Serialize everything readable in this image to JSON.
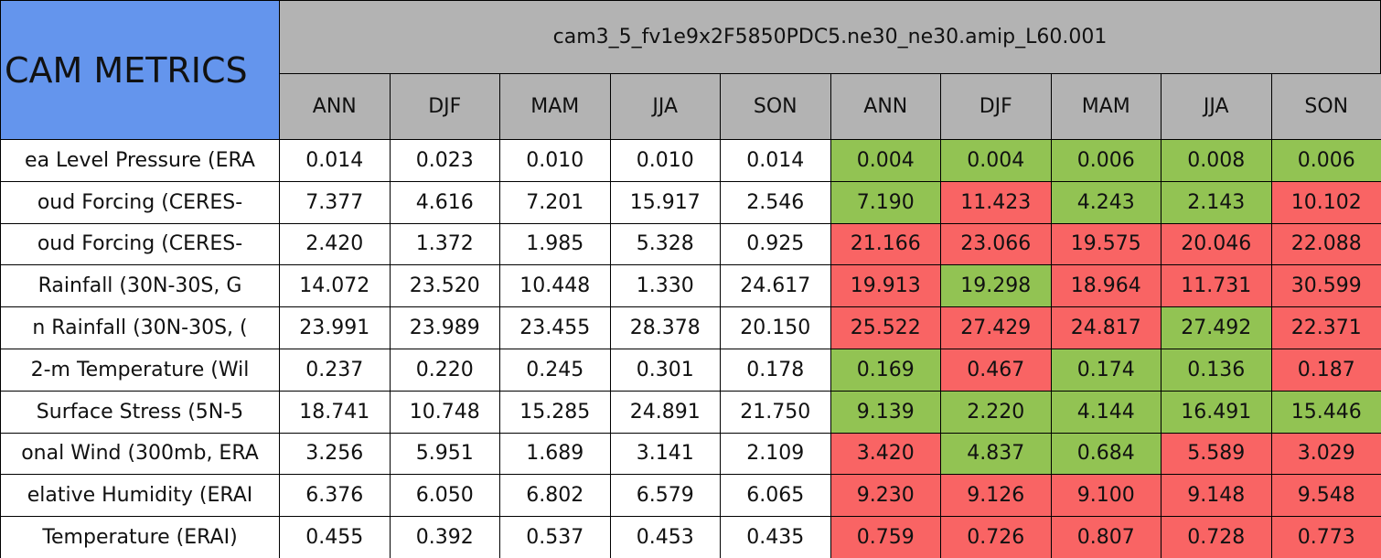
{
  "table": {
    "title": "CAM METRICS",
    "group_header": "cam3_5_fv1e9x2F5850PDC5.ne30_ne30.amip_L60.001",
    "columns": [
      "ANN",
      "DJF",
      "MAM",
      "JJA",
      "SON",
      "ANN",
      "DJF",
      "MAM",
      "JJA",
      "SON"
    ],
    "rows": [
      {
        "label": "ea Level Pressure (ERA",
        "values": [
          "0.014",
          "0.023",
          "0.010",
          "0.010",
          "0.014",
          "0.004",
          "0.004",
          "0.006",
          "0.008",
          "0.006"
        ],
        "colors": [
          "#ffffff",
          "#ffffff",
          "#ffffff",
          "#ffffff",
          "#ffffff",
          "#92c353",
          "#92c353",
          "#92c353",
          "#92c353",
          "#92c353"
        ]
      },
      {
        "label": "oud Forcing (CERES-",
        "values": [
          "7.377",
          "4.616",
          "7.201",
          "15.917",
          "2.546",
          "7.190",
          "11.423",
          "4.243",
          "2.143",
          "10.102"
        ],
        "colors": [
          "#ffffff",
          "#ffffff",
          "#ffffff",
          "#ffffff",
          "#ffffff",
          "#92c353",
          "#f96464",
          "#92c353",
          "#92c353",
          "#f96464"
        ]
      },
      {
        "label": "oud Forcing (CERES-",
        "values": [
          "2.420",
          "1.372",
          "1.985",
          "5.328",
          "0.925",
          "21.166",
          "23.066",
          "19.575",
          "20.046",
          "22.088"
        ],
        "colors": [
          "#ffffff",
          "#ffffff",
          "#ffffff",
          "#ffffff",
          "#ffffff",
          "#f96464",
          "#f96464",
          "#f96464",
          "#f96464",
          "#f96464"
        ]
      },
      {
        "label": "Rainfall (30N-30S, G",
        "values": [
          "14.072",
          "23.520",
          "10.448",
          "1.330",
          "24.617",
          "19.913",
          "19.298",
          "18.964",
          "11.731",
          "30.599"
        ],
        "colors": [
          "#ffffff",
          "#ffffff",
          "#ffffff",
          "#ffffff",
          "#ffffff",
          "#f96464",
          "#92c353",
          "#f96464",
          "#f96464",
          "#f96464"
        ]
      },
      {
        "label": "n Rainfall (30N-30S, (",
        "values": [
          "23.991",
          "23.989",
          "23.455",
          "28.378",
          "20.150",
          "25.522",
          "27.429",
          "24.817",
          "27.492",
          "22.371"
        ],
        "colors": [
          "#ffffff",
          "#ffffff",
          "#ffffff",
          "#ffffff",
          "#ffffff",
          "#f96464",
          "#f96464",
          "#f96464",
          "#92c353",
          "#f96464"
        ]
      },
      {
        "label": "2-m Temperature (Wil",
        "values": [
          "0.237",
          "0.220",
          "0.245",
          "0.301",
          "0.178",
          "0.169",
          "0.467",
          "0.174",
          "0.136",
          "0.187"
        ],
        "colors": [
          "#ffffff",
          "#ffffff",
          "#ffffff",
          "#ffffff",
          "#ffffff",
          "#92c353",
          "#f96464",
          "#92c353",
          "#92c353",
          "#f96464"
        ]
      },
      {
        "label": "Surface Stress (5N-5",
        "values": [
          "18.741",
          "10.748",
          "15.285",
          "24.891",
          "21.750",
          "9.139",
          "2.220",
          "4.144",
          "16.491",
          "15.446"
        ],
        "colors": [
          "#ffffff",
          "#ffffff",
          "#ffffff",
          "#ffffff",
          "#ffffff",
          "#92c353",
          "#92c353",
          "#92c353",
          "#92c353",
          "#92c353"
        ]
      },
      {
        "label": "onal Wind (300mb, ERA",
        "values": [
          "3.256",
          "5.951",
          "1.689",
          "3.141",
          "2.109",
          "3.420",
          "4.837",
          "0.684",
          "5.589",
          "3.029"
        ],
        "colors": [
          "#ffffff",
          "#ffffff",
          "#ffffff",
          "#ffffff",
          "#ffffff",
          "#f96464",
          "#92c353",
          "#92c353",
          "#f96464",
          "#f96464"
        ]
      },
      {
        "label": "elative Humidity (ERAI",
        "values": [
          "6.376",
          "6.050",
          "6.802",
          "6.579",
          "6.065",
          "9.230",
          "9.126",
          "9.100",
          "9.148",
          "9.548"
        ],
        "colors": [
          "#ffffff",
          "#ffffff",
          "#ffffff",
          "#ffffff",
          "#ffffff",
          "#f96464",
          "#f96464",
          "#f96464",
          "#f96464",
          "#f96464"
        ]
      },
      {
        "label": "Temperature (ERAI)",
        "values": [
          "0.455",
          "0.392",
          "0.537",
          "0.453",
          "0.435",
          "0.759",
          "0.726",
          "0.807",
          "0.728",
          "0.773"
        ],
        "colors": [
          "#ffffff",
          "#ffffff",
          "#ffffff",
          "#ffffff",
          "#ffffff",
          "#f96464",
          "#f96464",
          "#f96464",
          "#f96464",
          "#f96464"
        ]
      }
    ]
  }
}
